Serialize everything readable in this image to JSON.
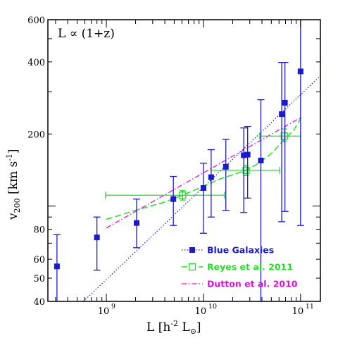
{
  "chart_data": {
    "type": "scatter",
    "x_scale": "log",
    "y_scale": "log",
    "xlim": [
      250000000.0,
      160000000000.0
    ],
    "ylim": [
      40,
      600
    ],
    "annotation": "L ∝ (1+z)",
    "xlabel": {
      "main": "L [h",
      "exp": "-2",
      "rest": " L",
      "sub": "⊙",
      "close": "]"
    },
    "ylabel": {
      "main": "v",
      "sub": "200",
      "rest": " [km s",
      "exp": "-1",
      "close": "]"
    },
    "x_major_ticks": [
      {
        "value": 1000000000.0,
        "label": "10",
        "exp": "9"
      },
      {
        "value": 10000000000.0,
        "label": "10",
        "exp": "10"
      },
      {
        "value": 100000000000.0,
        "label": "10",
        "exp": "11"
      }
    ],
    "y_tick_labels": [
      {
        "value": 40,
        "label": "40"
      },
      {
        "value": 50,
        "label": "50"
      },
      {
        "value": 60,
        "label": "60"
      },
      {
        "value": 80,
        "label": "80"
      },
      {
        "value": 200,
        "label": "200"
      },
      {
        "value": 400,
        "label": "400"
      },
      {
        "value": 600,
        "label": "600"
      }
    ],
    "y_minor_ticks": [
      40,
      50,
      60,
      70,
      80,
      90,
      100,
      200,
      300,
      400,
      500,
      600
    ],
    "colors": {
      "blue": "#1a1acc",
      "green": "#22e022",
      "magenta": "#e010e0"
    },
    "series": [
      {
        "name": "Blue Galaxies",
        "style": "filled-square-dotted",
        "color": "#1a1acc",
        "points": [
          {
            "x": 310000000.0,
            "y": 56,
            "ylo": 40,
            "yhi": 76
          },
          {
            "x": 800000000.0,
            "y": 74,
            "ylo": 54,
            "yhi": 90
          },
          {
            "x": 2050000000.0,
            "y": 85,
            "ylo": 67,
            "yhi": 107
          },
          {
            "x": 4900000000.0,
            "y": 107,
            "ylo": 83,
            "yhi": 133
          },
          {
            "x": 10000000000.0,
            "y": 119,
            "ylo": 77,
            "yhi": 151
          },
          {
            "x": 12000000000.0,
            "y": 132,
            "ylo": 90,
            "yhi": 172
          },
          {
            "x": 17000000000.0,
            "y": 146,
            "ylo": 96,
            "yhi": 190
          },
          {
            "x": 26000000000.0,
            "y": 163,
            "ylo": 94,
            "yhi": 212
          },
          {
            "x": 28500000000.0,
            "y": 164,
            "ylo": 108,
            "yhi": 215
          },
          {
            "x": 39000000000.0,
            "y": 155,
            "ylo": 40,
            "yhi": 278
          },
          {
            "x": 64000000000.0,
            "y": 242,
            "ylo": 86,
            "yhi": 398
          },
          {
            "x": 69000000000.0,
            "y": 270,
            "ylo": 95,
            "yhi": 398
          },
          {
            "x": 100000000000.0,
            "y": 365,
            "ylo": 83,
            "yhi": 600
          }
        ],
        "fit_line": [
          [
            580000000.0,
            40
          ],
          [
            160000000000.0,
            350
          ]
        ]
      },
      {
        "name": "Reyes et al. 2011",
        "style": "open-square-dashed",
        "color": "#22e022",
        "points": [
          {
            "x": 6100000000.0,
            "y": 111,
            "xlo": 980000000.0,
            "xhi": 16500000000.0,
            "ylo": 106,
            "yhi": 116
          },
          {
            "x": 27500000000.0,
            "y": 141,
            "xlo": 12000000000.0,
            "xhi": 61000000000.0,
            "ylo": 134,
            "yhi": 148
          },
          {
            "x": 68000000000.0,
            "y": 196,
            "xlo": 38000000000.0,
            "xhi": 100000000000.0,
            "ylo": 186,
            "yhi": 210
          }
        ],
        "curve": [
          [
            1000000000.0,
            88
          ],
          [
            2000000000.0,
            96
          ],
          [
            4000000000.0,
            104
          ],
          [
            6100000000.0,
            111
          ],
          [
            10000000000.0,
            121
          ],
          [
            15000000000.0,
            130
          ],
          [
            22000000000.0,
            137
          ],
          [
            27500000000.0,
            141
          ],
          [
            38000000000.0,
            152
          ],
          [
            52000000000.0,
            168
          ],
          [
            68000000000.0,
            190
          ],
          [
            85000000000.0,
            207
          ],
          [
            102000000000.0,
            235
          ]
        ]
      },
      {
        "name": "Dutton et al. 2010",
        "style": "dash-dot",
        "color": "#e010e0",
        "line": [
          [
            1000000000.0,
            81
          ],
          [
            100000000000.0,
            234
          ]
        ]
      }
    ],
    "legend_position": "bottom-right"
  }
}
